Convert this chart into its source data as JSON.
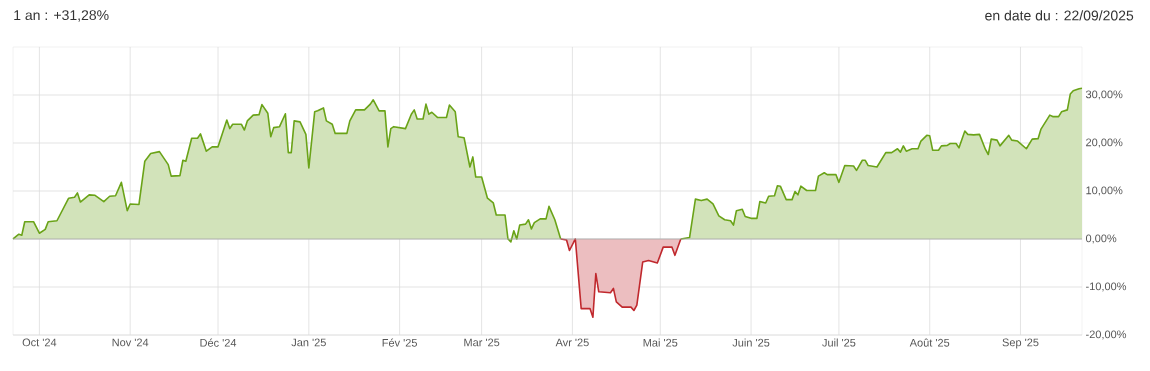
{
  "chart_data": {
    "type": "area",
    "title": "1 an : +31,28%",
    "annotations": [
      "en date du : 22/09/2025"
    ],
    "xlim": [
      "2024-09-22",
      "2025-09-22"
    ],
    "xticks": [
      {
        "value": "2024-10-01",
        "label": "Oct '24"
      },
      {
        "value": "2024-11-01",
        "label": "Nov '24"
      },
      {
        "value": "2024-12-01",
        "label": "Déc '24"
      },
      {
        "value": "2025-01-01",
        "label": "Jan '25"
      },
      {
        "value": "2025-02-01",
        "label": "Fév '25"
      },
      {
        "value": "2025-03-01",
        "label": "Mar '25"
      },
      {
        "value": "2025-04-01",
        "label": "Avr '25"
      },
      {
        "value": "2025-05-01",
        "label": "Mai '25"
      },
      {
        "value": "2025-06-01",
        "label": "Juin '25"
      },
      {
        "value": "2025-07-01",
        "label": "Juil '25"
      },
      {
        "value": "2025-08-01",
        "label": "Août '25"
      },
      {
        "value": "2025-09-01",
        "label": "Sep '25"
      }
    ],
    "ylim": [
      -20,
      40
    ],
    "yticks": [
      {
        "value": -20,
        "label": "-20,00%"
      },
      {
        "value": -10,
        "label": "-10,00%"
      },
      {
        "value": 0,
        "label": "0,00%"
      },
      {
        "value": 10,
        "label": "10,00%"
      },
      {
        "value": 20,
        "label": "20,00%"
      },
      {
        "value": 30,
        "label": "30,00%"
      }
    ],
    "grid": true,
    "series": [
      {
        "color": "#6aa318",
        "x": [
          "2024-09-22",
          "2024-09-24",
          "2024-09-25",
          "2024-09-26",
          "2024-09-29",
          "2024-10-01",
          "2024-10-03",
          "2024-10-04",
          "2024-10-07",
          "2024-10-11",
          "2024-10-13",
          "2024-10-14",
          "2024-10-15",
          "2024-10-18",
          "2024-10-20",
          "2024-10-23",
          "2024-10-25",
          "2024-10-27",
          "2024-10-29",
          "2024-10-31",
          "2024-11-01",
          "2024-11-04",
          "2024-11-06",
          "2024-11-08",
          "2024-11-11",
          "2024-11-14",
          "2024-11-15",
          "2024-11-18",
          "2024-11-19",
          "2024-11-20",
          "2024-11-22",
          "2024-11-24",
          "2024-11-25",
          "2024-11-27",
          "2024-11-29",
          "2024-12-01",
          "2024-12-04",
          "2024-12-05",
          "2024-12-06",
          "2024-12-09",
          "2024-12-10",
          "2024-12-11",
          "2024-12-13",
          "2024-12-15",
          "2024-12-16",
          "2024-12-18",
          "2024-12-19",
          "2024-12-20",
          "2024-12-22",
          "2024-12-24",
          "2024-12-25",
          "2024-12-26",
          "2024-12-27",
          "2024-12-29",
          "2024-12-31",
          "2025-01-01",
          "2025-01-03",
          "2025-01-04",
          "2025-01-06",
          "2025-01-07",
          "2025-01-09",
          "2025-01-10",
          "2025-01-14",
          "2025-01-15",
          "2025-01-17",
          "2025-01-20",
          "2025-01-22",
          "2025-01-23",
          "2025-01-25",
          "2025-01-27",
          "2025-01-28",
          "2025-01-29",
          "2025-01-30",
          "2025-02-03",
          "2025-02-05",
          "2025-02-06",
          "2025-02-07",
          "2025-02-09",
          "2025-02-10",
          "2025-02-11",
          "2025-02-12",
          "2025-02-14",
          "2025-02-17",
          "2025-02-18",
          "2025-02-20",
          "2025-02-21",
          "2025-02-23",
          "2025-02-25",
          "2025-02-26",
          "2025-02-27",
          "2025-03-01",
          "2025-03-03",
          "2025-03-05",
          "2025-03-06",
          "2025-03-09",
          "2025-03-10",
          "2025-03-11",
          "2025-03-12",
          "2025-03-13",
          "2025-03-14",
          "2025-03-16",
          "2025-03-17",
          "2025-03-18",
          "2025-03-19",
          "2025-03-21",
          "2025-03-23",
          "2025-03-24",
          "2025-03-26",
          "2025-03-28",
          "2025-03-30",
          "2025-03-31",
          "2025-04-02",
          "2025-04-04",
          "2025-04-07",
          "2025-04-08",
          "2025-04-09",
          "2025-04-10",
          "2025-04-14",
          "2025-04-15",
          "2025-04-16",
          "2025-04-18",
          "2025-04-21",
          "2025-04-22",
          "2025-04-23",
          "2025-04-25",
          "2025-04-27",
          "2025-04-30",
          "2025-05-02",
          "2025-05-05",
          "2025-05-06",
          "2025-05-08",
          "2025-05-11",
          "2025-05-13",
          "2025-05-15",
          "2025-05-17",
          "2025-05-19",
          "2025-05-21",
          "2025-05-23",
          "2025-05-25",
          "2025-05-26",
          "2025-05-27",
          "2025-05-29",
          "2025-05-30",
          "2025-06-01",
          "2025-06-03",
          "2025-06-04",
          "2025-06-06",
          "2025-06-07",
          "2025-06-09",
          "2025-06-10",
          "2025-06-11",
          "2025-06-13",
          "2025-06-15",
          "2025-06-16",
          "2025-06-17",
          "2025-06-18",
          "2025-06-20",
          "2025-06-23",
          "2025-06-24",
          "2025-06-26",
          "2025-06-27",
          "2025-06-30",
          "2025-07-01",
          "2025-07-03",
          "2025-07-06",
          "2025-07-07",
          "2025-07-09",
          "2025-07-10",
          "2025-07-11",
          "2025-07-14",
          "2025-07-17",
          "2025-07-19",
          "2025-07-21",
          "2025-07-22",
          "2025-07-23",
          "2025-07-24",
          "2025-07-26",
          "2025-07-28",
          "2025-07-29",
          "2025-07-31",
          "2025-08-01",
          "2025-08-02",
          "2025-08-04",
          "2025-08-05",
          "2025-08-07",
          "2025-08-08",
          "2025-08-10",
          "2025-08-11",
          "2025-08-13",
          "2025-08-14",
          "2025-08-16",
          "2025-08-18",
          "2025-08-20",
          "2025-08-21",
          "2025-08-22",
          "2025-08-24",
          "2025-08-25",
          "2025-08-28",
          "2025-08-29",
          "2025-08-31",
          "2025-09-03",
          "2025-09-05",
          "2025-09-07",
          "2025-09-08",
          "2025-09-11",
          "2025-09-12",
          "2025-09-14",
          "2025-09-15",
          "2025-09-17",
          "2025-09-18",
          "2025-09-19",
          "2025-09-21",
          "2025-09-22"
        ],
        "values": [
          0,
          1.0,
          0.8,
          3.6,
          3.6,
          1.2,
          2.0,
          3.6,
          3.8,
          8.5,
          8.7,
          9.6,
          7.7,
          9.2,
          9.1,
          7.8,
          8.9,
          9.0,
          11.8,
          5.9,
          7.3,
          7.2,
          16.2,
          17.8,
          18.2,
          15.5,
          13.1,
          13.2,
          16.4,
          16.2,
          21.0,
          21.0,
          21.9,
          18.3,
          19.2,
          19.2,
          24.8,
          23.0,
          23.9,
          23.9,
          22.7,
          24.6,
          25.8,
          25.9,
          28.0,
          26.2,
          21.3,
          23.2,
          23.4,
          26.1,
          18.0,
          18.0,
          24.6,
          24.4,
          21.8,
          14.8,
          26.5,
          26.7,
          27.3,
          24.6,
          23.9,
          22.0,
          22.0,
          24.6,
          26.9,
          26.9,
          28.1,
          29.0,
          26.7,
          26.7,
          19.2,
          23.0,
          23.4,
          23.0,
          26.0,
          26.9,
          25.0,
          25.0,
          28.1,
          26.0,
          26.4,
          25.3,
          25.3,
          27.9,
          26.5,
          21.3,
          21.1,
          15.0,
          17.1,
          12.9,
          12.9,
          8.5,
          7.5,
          5.0,
          5.0,
          0,
          -0.6,
          1.7,
          0,
          2.9,
          3.1,
          4.0,
          2.1,
          3.4,
          4.2,
          4.2,
          6.8,
          4.0,
          0,
          null,
          null,
          null,
          null,
          null,
          null,
          null,
          null,
          null,
          null,
          null,
          null,
          null,
          null,
          null,
          null,
          null,
          null,
          null,
          null,
          null,
          0,
          0.3,
          8.3,
          8.0,
          8.3,
          7.3,
          4.8,
          4.0,
          3.8,
          2.9,
          5.9,
          6.2,
          4.7,
          4.3,
          4.3,
          7.8,
          7.5,
          8.9,
          9.0,
          11.1,
          11.0,
          8.2,
          8.2,
          9.9,
          9.2,
          11.0,
          10.1,
          10.1,
          13.1,
          13.8,
          13.4,
          13.4,
          11.8,
          15.3,
          15.2,
          14.3,
          16.4,
          16.4,
          15.3,
          15.0,
          18.0,
          18.0,
          18.8,
          18.1,
          19.4,
          18.3,
          18.8,
          18.8,
          20.4,
          21.6,
          21.5,
          18.5,
          18.5,
          19.4,
          19.5,
          19.9,
          19.9,
          19.0,
          22.5,
          21.8,
          21.7,
          21.8,
          18.7,
          17.6,
          20.8,
          20.6,
          19.4,
          21.6,
          20.6,
          20.4,
          18.8,
          20.8,
          20.9,
          22.9,
          25.8,
          25.5,
          25.5,
          26.5,
          26.9,
          30.2,
          30.9,
          31.3,
          31.4
        ]
      },
      {
        "color": "#c0282d",
        "x": [
          "2025-03-28",
          "2025-03-30",
          "2025-03-31",
          "2025-04-02",
          "2025-04-04",
          "2025-04-07",
          "2025-04-08",
          "2025-04-09",
          "2025-04-10",
          "2025-04-14",
          "2025-04-15",
          "2025-04-16",
          "2025-04-18",
          "2025-04-21",
          "2025-04-22",
          "2025-04-23",
          "2025-04-25",
          "2025-04-27",
          "2025-04-30",
          "2025-05-02",
          "2025-05-05",
          "2025-05-06",
          "2025-05-08"
        ],
        "values": [
          0,
          -0.2,
          -2.4,
          0,
          -14.5,
          -14.5,
          -16.3,
          -7.2,
          -11.0,
          -11.2,
          -10.3,
          -13.1,
          -14.2,
          -14.2,
          -14.9,
          -13.8,
          -4.8,
          -4.5,
          -5.0,
          -1.7,
          -1.7,
          -3.4,
          0
        ]
      }
    ]
  }
}
